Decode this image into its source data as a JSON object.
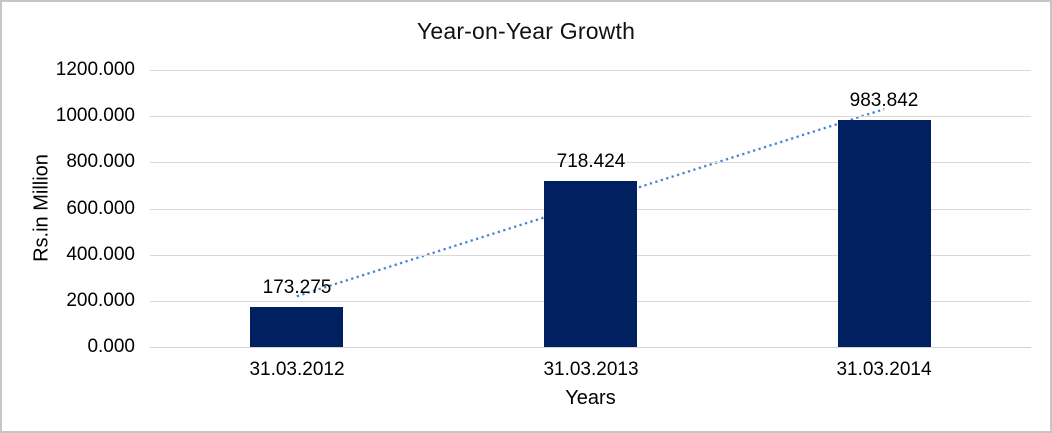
{
  "chart_data": {
    "type": "bar",
    "title": "Year-on-Year Growth",
    "xlabel": "Years",
    "ylabel": "Rs.in Million",
    "categories": [
      "31.03.2012",
      "31.03.2013",
      "31.03.2014"
    ],
    "values": [
      173.275,
      718.424,
      983.842
    ],
    "value_labels": [
      "173.275",
      "718.424",
      "983.842"
    ],
    "y_tick_labels": [
      "0.000",
      "200.000",
      "400.000",
      "600.000",
      "800.000",
      "1000.000",
      "1200.000"
    ],
    "y_tick_values": [
      0,
      200,
      400,
      600,
      800,
      1000,
      1200
    ],
    "ylim": [
      0,
      1200
    ],
    "grid": "horizontal",
    "legend": "none",
    "trendline": {
      "type": "linear",
      "style": "dotted"
    },
    "colors": {
      "bar": "#002060",
      "trendline": "#4a86c8",
      "gridline": "#d9d9d9",
      "text": "#000000",
      "background": "#ffffff",
      "frame_border": "#c6c6c6"
    }
  }
}
